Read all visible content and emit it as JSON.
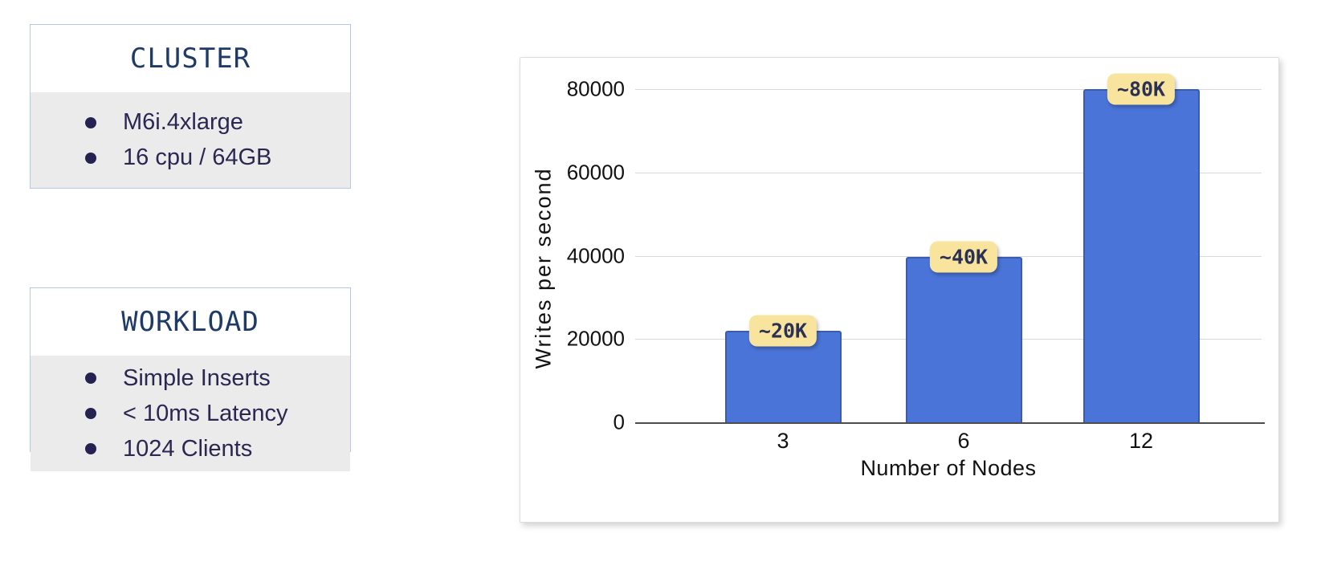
{
  "info_boxes": [
    {
      "title": "CLUSTER",
      "items": [
        "M6i.4xlarge",
        "16 cpu / 64GB"
      ]
    },
    {
      "title": "WORKLOAD",
      "items": [
        "Simple Inserts",
        "< 10ms Latency",
        "1024 Clients"
      ]
    }
  ],
  "chart_data": {
    "type": "bar",
    "title": "",
    "categories": [
      "3",
      "6",
      "12"
    ],
    "values": [
      22000,
      39700,
      80000
    ],
    "bar_labels": [
      "~20K",
      "~40K",
      "~80K"
    ],
    "xlabel": "Number of Nodes",
    "ylabel": "Writes per second",
    "yticks": [
      0,
      20000,
      40000,
      60000,
      80000
    ],
    "ytick_labels": [
      "0",
      "20000",
      "40000",
      "60000",
      "80000"
    ],
    "ylim": [
      0,
      83000
    ],
    "grid": true,
    "legend": false,
    "bar_color": "#4a74d8",
    "bar_border_color": "#3a5cae",
    "label_bg_color": "#f8e49d",
    "label_text_color": "#2b3155"
  }
}
